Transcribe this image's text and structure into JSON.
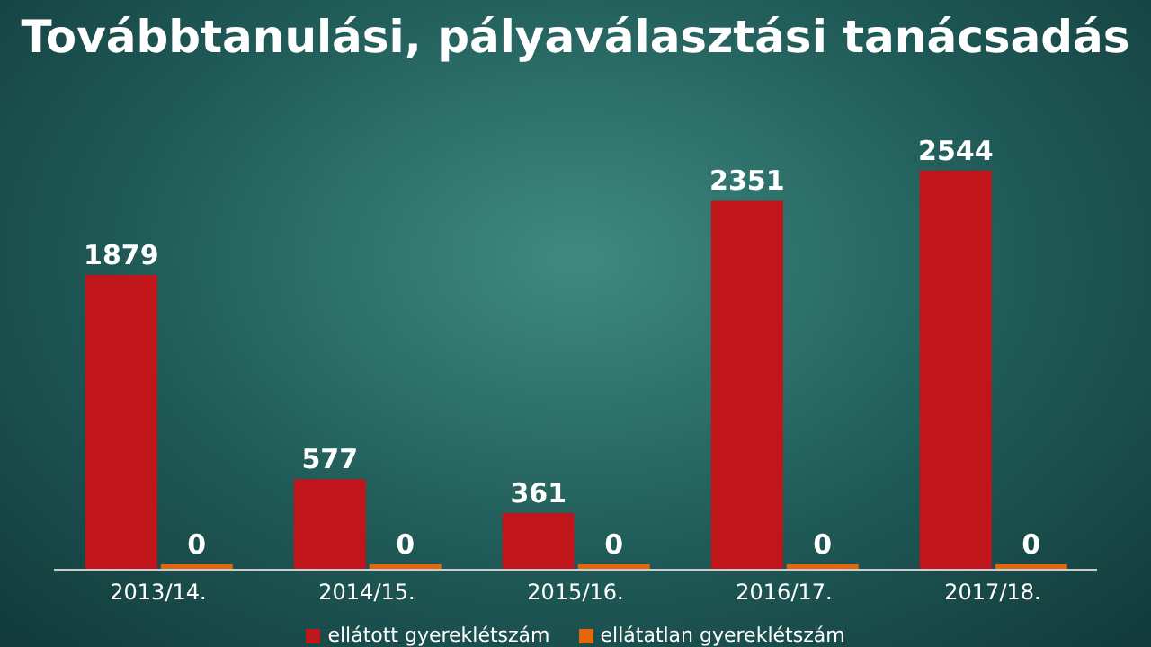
{
  "chart_data": {
    "type": "bar",
    "title": "Továbbtanulási, pályaválasztási tanácsadás",
    "categories": [
      "2013/14.",
      "2014/15.",
      "2015/16.",
      "2016/17.",
      "2017/18."
    ],
    "series": [
      {
        "name": "ellátott gyereklétszám",
        "color": "#c0151b",
        "values": [
          1879,
          577,
          361,
          2351,
          2544
        ]
      },
      {
        "name": "ellátatlan gyereklétszám",
        "color": "#e2660c",
        "values": [
          0,
          0,
          0,
          0,
          0
        ]
      }
    ],
    "data_labels": true,
    "legend": "bottom"
  }
}
